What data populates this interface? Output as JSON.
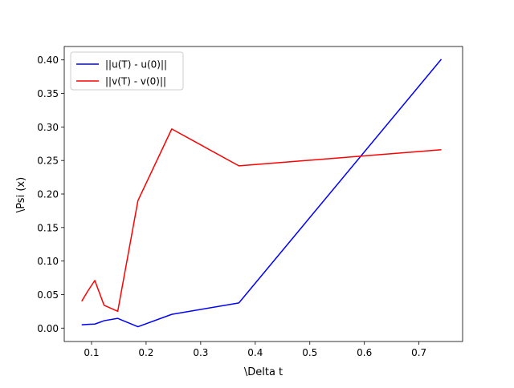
{
  "chart_data": {
    "type": "line",
    "title": "",
    "xlabel": "\\Delta t",
    "ylabel": "\\Psi (x)",
    "xlim": [
      0.05,
      0.78
    ],
    "ylim": [
      -0.02,
      0.42
    ],
    "xticks": [
      0.1,
      0.2,
      0.3,
      0.4,
      0.5,
      0.6,
      0.7
    ],
    "xtick_labels": [
      "0.1",
      "0.2",
      "0.3",
      "0.4",
      "0.5",
      "0.6",
      "0.7"
    ],
    "yticks": [
      0.0,
      0.05,
      0.1,
      0.15,
      0.2,
      0.25,
      0.3,
      0.35,
      0.4
    ],
    "ytick_labels": [
      "0.00",
      "0.05",
      "0.10",
      "0.15",
      "0.20",
      "0.25",
      "0.30",
      "0.35",
      "0.40"
    ],
    "grid": false,
    "legend_position": "upper-left",
    "series": [
      {
        "name": "||u(T) - u(0)||",
        "color": "#0000ff",
        "x": [
          0.082,
          0.093,
          0.106,
          0.123,
          0.148,
          0.185,
          0.247,
          0.37,
          0.741
        ],
        "y": [
          0.005,
          0.0055,
          0.006,
          0.011,
          0.0145,
          0.002,
          0.0205,
          0.0375,
          0.401
        ]
      },
      {
        "name": "||v(T) - v(0)||",
        "color": "#ff0000",
        "x": [
          0.082,
          0.093,
          0.106,
          0.123,
          0.148,
          0.185,
          0.247,
          0.37,
          0.741
        ],
        "y": [
          0.04,
          0.055,
          0.071,
          0.034,
          0.025,
          0.19,
          0.297,
          0.242,
          0.266
        ]
      }
    ]
  }
}
